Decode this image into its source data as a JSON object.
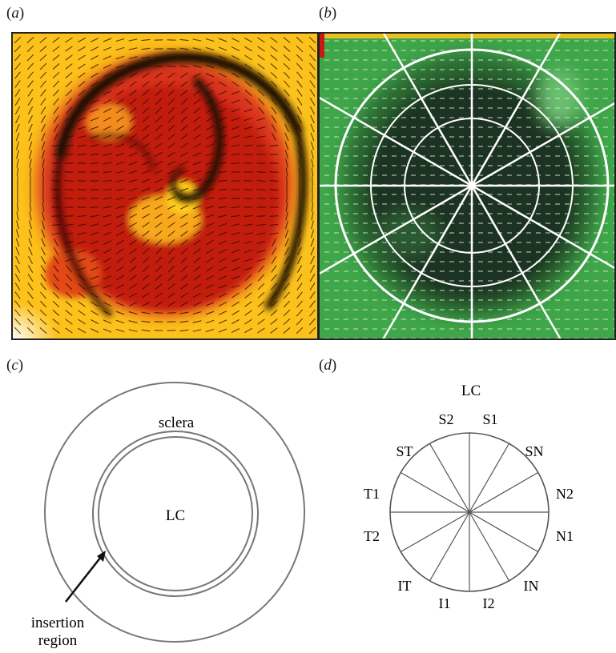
{
  "panels": {
    "a": {
      "letter": "a"
    },
    "b": {
      "letter": "b"
    },
    "c": {
      "letter": "c",
      "sclera_label": "sclera",
      "lc_label": "LC",
      "insertion_label_line1": "insertion",
      "insertion_label_line2": "region"
    },
    "d": {
      "letter": "d",
      "title": "LC",
      "sectors": {
        "s2": "S2",
        "s1": "S1",
        "st": "ST",
        "sn": "SN",
        "t1": "T1",
        "n2": "N2",
        "t2": "T2",
        "n1": "N1",
        "it": "IT",
        "in": "IN",
        "i1": "I1",
        "i2": "I2"
      }
    }
  },
  "colors": {
    "heatmap_dark": "#1e0804",
    "heatmap_red": "#c21e0c",
    "heatmap_yellow": "#ffd21c",
    "green_field": "#3fa64a",
    "green_dark": "#16241a",
    "overlay_white": "#ffffff",
    "outline_gray": "#777777"
  },
  "icons": {
    "fiber_orientation": "dash-line-field",
    "insertion_pointer": "arrow-icon"
  }
}
